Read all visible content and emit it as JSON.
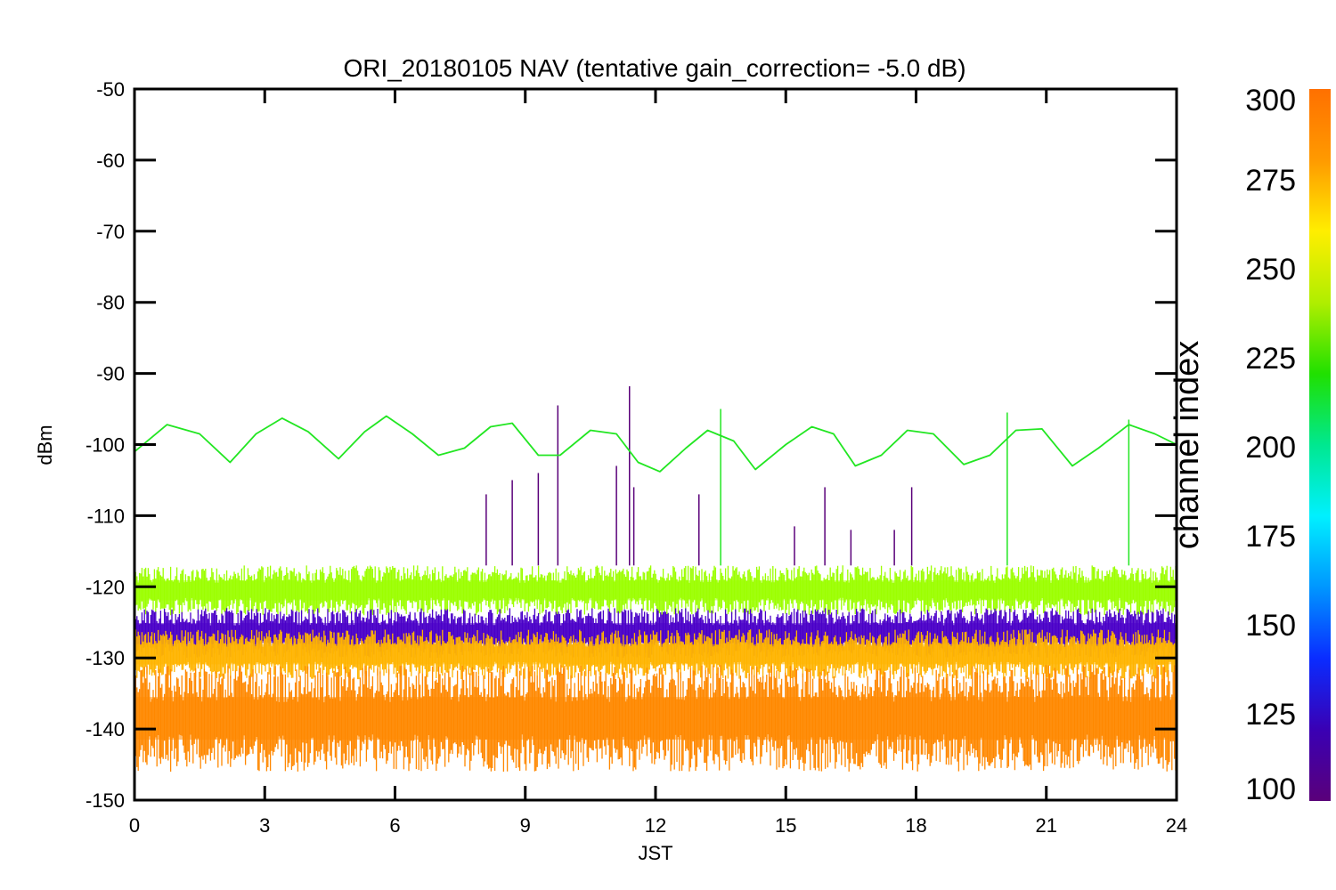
{
  "chart_data": {
    "type": "line",
    "title": "ORI_20180105 NAV (tentative gain_correction= -5.0 dB)",
    "xlabel": "JST",
    "ylabel": "dBm",
    "xlim": [
      0,
      24
    ],
    "ylim": [
      -150,
      -50
    ],
    "xticks": [
      0,
      3,
      6,
      9,
      12,
      15,
      18,
      21,
      24
    ],
    "xtick_labels": [
      "0",
      "3",
      "6",
      "9",
      "12",
      "15",
      "18",
      "21",
      "24"
    ],
    "yticks": [
      -50,
      -60,
      -70,
      -80,
      -90,
      -100,
      -110,
      -120,
      -130,
      -140,
      -150
    ],
    "ytick_labels": [
      "-50",
      "-60",
      "-70",
      "-80",
      "-90",
      "-100",
      "-110",
      "-120",
      "-130",
      "-140",
      "-150"
    ],
    "grid": false,
    "colorbar": {
      "label": "channel index",
      "range": [
        100,
        300
      ],
      "ticks": [
        100,
        125,
        150,
        175,
        200,
        225,
        250,
        275,
        300
      ],
      "tick_labels": [
        "100",
        "125",
        "150",
        "175",
        "200",
        "225",
        "250",
        "275",
        "300"
      ],
      "colors": [
        "#5a007a",
        "#3a00b4",
        "#0a2cff",
        "#0096ff",
        "#00f0ff",
        "#00e890",
        "#20e000",
        "#b0ee00",
        "#ffee00",
        "#ff9a00",
        "#ff7000"
      ]
    },
    "series": [
      {
        "channel_color": "#22e622",
        "x": [
          0,
          0.75,
          1.5,
          2.2,
          2.8,
          3.4,
          4.0,
          4.7,
          5.3,
          5.8,
          6.4,
          7.0,
          7.6,
          8.2,
          8.7,
          9.3,
          9.8,
          10.5,
          11.1,
          11.6,
          12.1,
          12.7,
          13.2,
          13.8,
          14.3,
          15.0,
          15.6,
          16.1,
          16.6,
          17.2,
          17.8,
          18.4,
          19.1,
          19.7,
          20.3,
          20.9,
          21.6,
          22.2,
          22.9,
          23.5,
          24.0
        ],
        "y": [
          -101,
          -97.2,
          -98.5,
          -102.5,
          -98.5,
          -96.3,
          -98.2,
          -102,
          -98.2,
          -96.0,
          -98.5,
          -101.5,
          -100.5,
          -97.5,
          -97.0,
          -101.5,
          -101.5,
          -98.0,
          -98.5,
          -102.5,
          -103.8,
          -100.5,
          -98.0,
          -99.5,
          -103.5,
          -100.0,
          -97.5,
          -98.5,
          -103.0,
          -101.5,
          -98.0,
          -98.5,
          -102.8,
          -101.5,
          -98.0,
          -97.8,
          -103.0,
          -100.5,
          -97.2,
          -98.5,
          -100.0
        ]
      }
    ],
    "noise_bands": [
      {
        "channel_color": "#9cff00",
        "y_range": [
          -124,
          -117
        ]
      },
      {
        "channel_color": "#4a00c8",
        "y_range": [
          -130,
          -123
        ]
      },
      {
        "channel_color": "#ffb400",
        "y_range": [
          -133,
          -126
        ]
      },
      {
        "channel_color": "#ff8800",
        "y_range": [
          -146,
          -131
        ]
      }
    ],
    "spikes": [
      {
        "x": 8.1,
        "y": -107,
        "channel_color": "#5a007a"
      },
      {
        "x": 8.7,
        "y": -105,
        "channel_color": "#5a007a"
      },
      {
        "x": 9.3,
        "y": -104,
        "channel_color": "#5a007a"
      },
      {
        "x": 9.75,
        "y": -94.5,
        "channel_color": "#5a007a"
      },
      {
        "x": 11.1,
        "y": -103,
        "channel_color": "#5a007a"
      },
      {
        "x": 11.4,
        "y": -91.8,
        "channel_color": "#5a007a"
      },
      {
        "x": 11.5,
        "y": -106,
        "channel_color": "#5a007a"
      },
      {
        "x": 13.0,
        "y": -107,
        "channel_color": "#5a007a"
      },
      {
        "x": 13.5,
        "y": -95,
        "channel_color": "#22e622"
      },
      {
        "x": 15.2,
        "y": -111.5,
        "channel_color": "#5a007a"
      },
      {
        "x": 15.9,
        "y": -106,
        "channel_color": "#5a007a"
      },
      {
        "x": 16.5,
        "y": -112,
        "channel_color": "#5a007a"
      },
      {
        "x": 17.5,
        "y": -112,
        "channel_color": "#5a007a"
      },
      {
        "x": 17.9,
        "y": -106,
        "channel_color": "#5a007a"
      },
      {
        "x": 20.1,
        "y": -95.5,
        "channel_color": "#22e622"
      },
      {
        "x": 22.9,
        "y": -96.5,
        "channel_color": "#22e622"
      }
    ]
  }
}
